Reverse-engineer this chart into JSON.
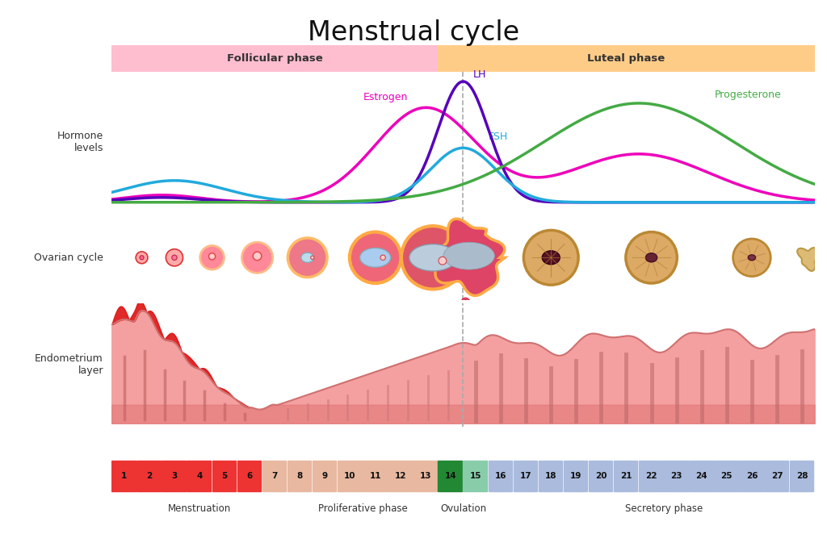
{
  "title": "Menstrual cycle",
  "title_fontsize": 24,
  "follicular_label": "Follicular phase",
  "luteal_label": "Luteal phase",
  "hormone_label": "Hormone\nlevels",
  "ovarian_label": "Ovarian cycle",
  "endometrium_label": "Endometrium\nlayer",
  "phase_colors": {
    "follicular": "#FFBDD0",
    "luteal": "#FFCC88"
  },
  "hormone_colors": {
    "estrogen": "#EE00BB",
    "lh": "#5500BB",
    "fsh": "#22AADD",
    "progesterone": "#44AA44"
  },
  "day_colors": {
    "menstruation": "#EE3333",
    "proliferative": "#E8B8A0",
    "ovulation_pre": "#88CCAA",
    "ovulation": "#228833",
    "secretory": "#AABBDD"
  },
  "phase_labels": [
    "Menstruation",
    "Proliferative phase",
    "Ovulation",
    "Secretory phase"
  ],
  "background_color": "#FFFFFF"
}
